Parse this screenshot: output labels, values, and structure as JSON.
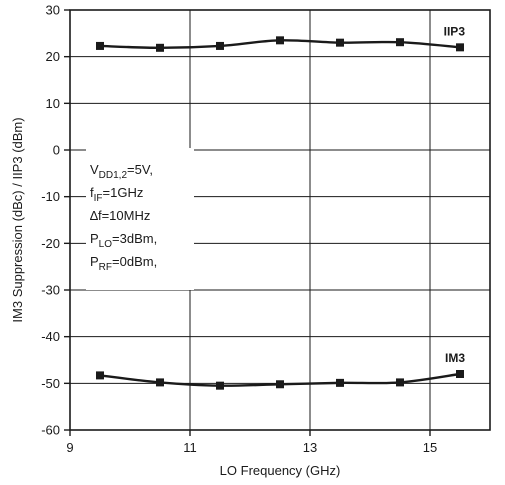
{
  "chart_data": {
    "type": "line",
    "xlabel": "LO Frequency (GHz)",
    "ylabel": "IM3 Suppression (dBc) / IIP3 (dBm)",
    "xlim": [
      9,
      16
    ],
    "ylim": [
      -60,
      30
    ],
    "xticks": [
      9,
      11,
      13,
      15
    ],
    "yticks": [
      30,
      20,
      10,
      0,
      -10,
      -20,
      -30,
      -40,
      -50,
      -60
    ],
    "grid": true,
    "series": [
      {
        "name": "IIP3",
        "x": [
          9.5,
          10.5,
          11.5,
          12.5,
          13.5,
          14.5,
          15.5
        ],
        "y": [
          22.3,
          21.9,
          22.3,
          23.5,
          23.0,
          23.1,
          22.0
        ]
      },
      {
        "name": "IM3",
        "x": [
          9.5,
          10.5,
          11.5,
          12.5,
          13.5,
          14.5,
          15.5
        ],
        "y": [
          -48.3,
          -49.8,
          -50.5,
          -50.2,
          -49.9,
          -49.8,
          -48.0
        ]
      }
    ],
    "conditions": [
      {
        "main": "V",
        "sub": "DD1,2",
        "rest": "=5V,"
      },
      {
        "main": "f",
        "sub": "IF",
        "rest": "=1GHz"
      },
      {
        "main": "∆f=10MHz",
        "sub": "",
        "rest": ""
      },
      {
        "main": "P",
        "sub": "LO",
        "rest": "=3dBm,"
      },
      {
        "main": "P",
        "sub": "RF",
        "rest": "=0dBm,"
      }
    ]
  }
}
